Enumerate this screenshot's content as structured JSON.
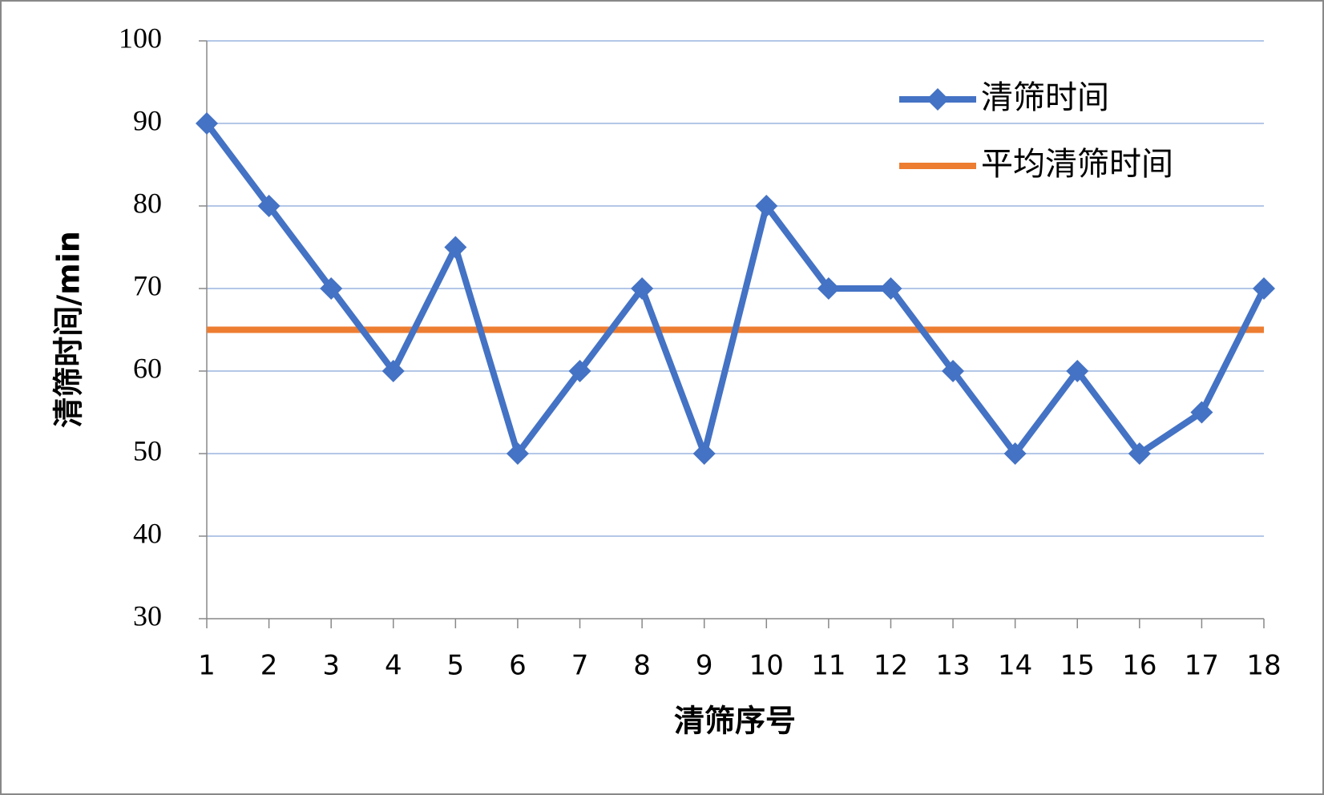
{
  "chart_data": {
    "type": "line",
    "x_label": "清筛序号",
    "y_label": "清筛时间/min",
    "x": [
      1,
      2,
      3,
      4,
      5,
      6,
      7,
      8,
      9,
      10,
      11,
      12,
      13,
      14,
      15,
      16,
      17,
      18
    ],
    "xlim": [
      1,
      18
    ],
    "xticks": [
      1,
      2,
      3,
      4,
      5,
      6,
      7,
      8,
      9,
      10,
      11,
      12,
      13,
      14,
      15,
      16,
      17,
      18
    ],
    "ylim": [
      30,
      100
    ],
    "yticks": [
      30,
      40,
      50,
      60,
      70,
      80,
      90,
      100
    ],
    "grid": true,
    "series": [
      {
        "name": "清筛时间",
        "color": "#4472c4",
        "marker": "diamond",
        "values": [
          90,
          80,
          70,
          60,
          75,
          50,
          60,
          70,
          50,
          80,
          70,
          70,
          60,
          50,
          60,
          50,
          55,
          70
        ]
      },
      {
        "name": "平均清筛时间",
        "color": "#ed7d31",
        "marker": "none",
        "values": [
          65,
          65,
          65,
          65,
          65,
          65,
          65,
          65,
          65,
          65,
          65,
          65,
          65,
          65,
          65,
          65,
          65,
          65
        ]
      }
    ]
  }
}
